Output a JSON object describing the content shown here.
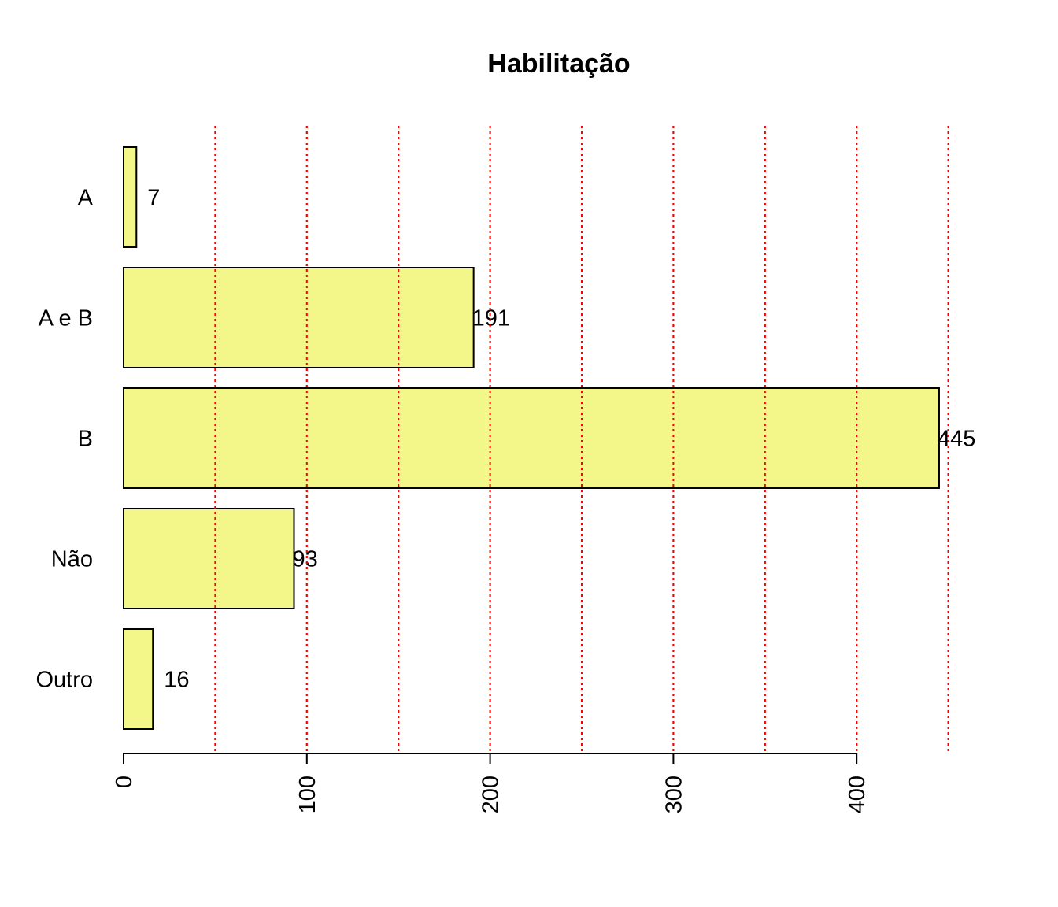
{
  "chart_data": {
    "type": "bar",
    "orientation": "horizontal",
    "title": "Habilitação",
    "xlabel": "",
    "ylabel": "",
    "categories": [
      "A",
      "A e B",
      "B",
      "Não",
      "Outro"
    ],
    "values": [
      7,
      191,
      445,
      93,
      16
    ],
    "data_labels": [
      "7",
      "191",
      "445",
      "93",
      "16"
    ],
    "xlim": [
      0,
      450
    ],
    "x_ticks": [
      0,
      100,
      200,
      300,
      400
    ],
    "x_tick_labels": [
      "0",
      "100",
      "200",
      "300",
      "400"
    ],
    "gridlines_x": [
      50,
      100,
      150,
      200,
      250,
      300,
      350,
      400,
      450
    ],
    "grid": "vertical dotted",
    "colors": {
      "bar_fill": "#f2f57f",
      "bar_stroke": "#000000",
      "grid": "#ff0000"
    }
  }
}
